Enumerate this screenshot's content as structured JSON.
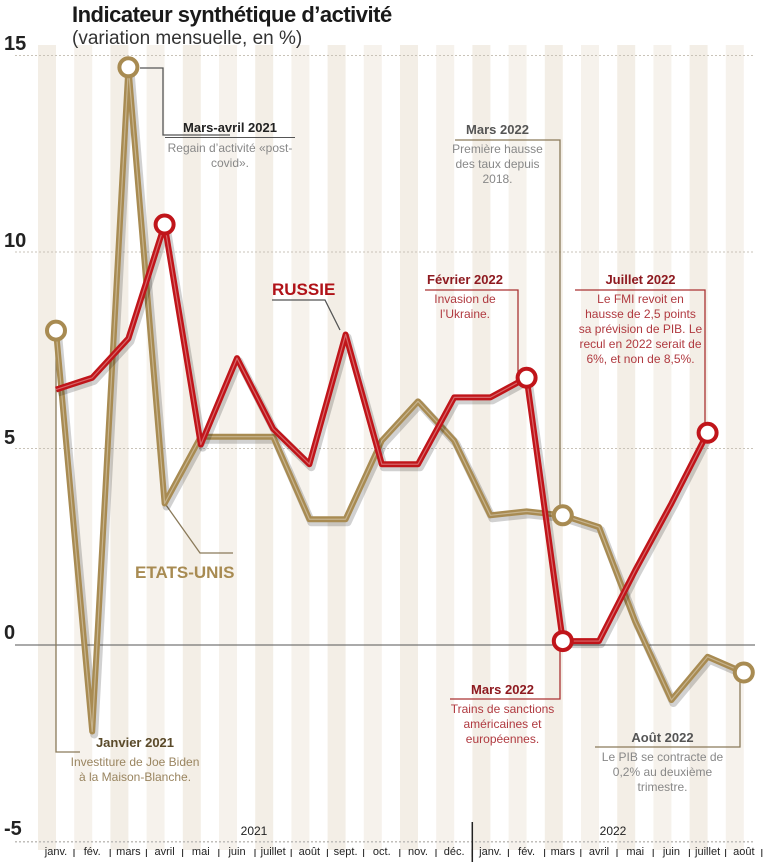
{
  "chart_data": {
    "type": "line",
    "title": "Indicateur synthétique d’activité",
    "subtitle": "(variation mensuelle, en %)",
    "xlabel": "",
    "ylabel": "",
    "ylim": [
      -5,
      15
    ],
    "yticks": [
      "15",
      "10",
      "5",
      "0",
      "-5"
    ],
    "ytick_values": [
      15,
      10,
      5,
      0,
      -5
    ],
    "years": [
      "2021",
      "2022"
    ],
    "categories": [
      "janv.",
      "fév.",
      "mars",
      "avril",
      "mai",
      "juin",
      "juillet",
      "août",
      "sept.",
      "oct.",
      "nov.",
      "déc.",
      "janv.",
      "fév.",
      "mars",
      "avril",
      "mai",
      "juin",
      "juillet",
      "août"
    ],
    "series": [
      {
        "name": "ETATS-UNIS",
        "color": "#a88b52",
        "values": [
          8.0,
          -2.2,
          14.7,
          3.6,
          5.3,
          5.3,
          5.3,
          3.2,
          3.2,
          5.2,
          6.2,
          5.2,
          3.3,
          3.4,
          3.3,
          3.0,
          0.6,
          -1.4,
          -0.3,
          -0.7
        ]
      },
      {
        "name": "RUSSIE",
        "color": "#c0151a",
        "values": [
          6.5,
          6.8,
          7.8,
          10.7,
          5.1,
          7.3,
          5.5,
          4.6,
          7.9,
          4.6,
          4.6,
          6.3,
          6.3,
          6.8,
          0.1,
          0.1,
          1.9,
          3.6,
          5.4,
          null
        ]
      }
    ],
    "grid": true,
    "annotations": [
      {
        "title": "Mars-avril 2021",
        "text": "Regain d’activité «post-covid»."
      },
      {
        "title": "Mars 2022",
        "text": "Première hausse des taux depuis 2018."
      },
      {
        "title": "Février 2022",
        "text": "Invasion de l’Ukraine."
      },
      {
        "title": "Juillet 2022",
        "text": "Le FMI revoit en hausse de 2,5 points sa prévision de PIB. Le recul en 2022 serait de 6%, et non de 8,5%."
      },
      {
        "title": "Mars 2022",
        "text": "Trains de sanctions américaines et européennes."
      },
      {
        "title": "Août 2022",
        "text": "Le PIB se contracte de 0,2% au deuxième trimestre."
      },
      {
        "title": "Janvier 2021",
        "text": "Investiture de Joe Biden à la Maison-Blanche."
      }
    ]
  }
}
